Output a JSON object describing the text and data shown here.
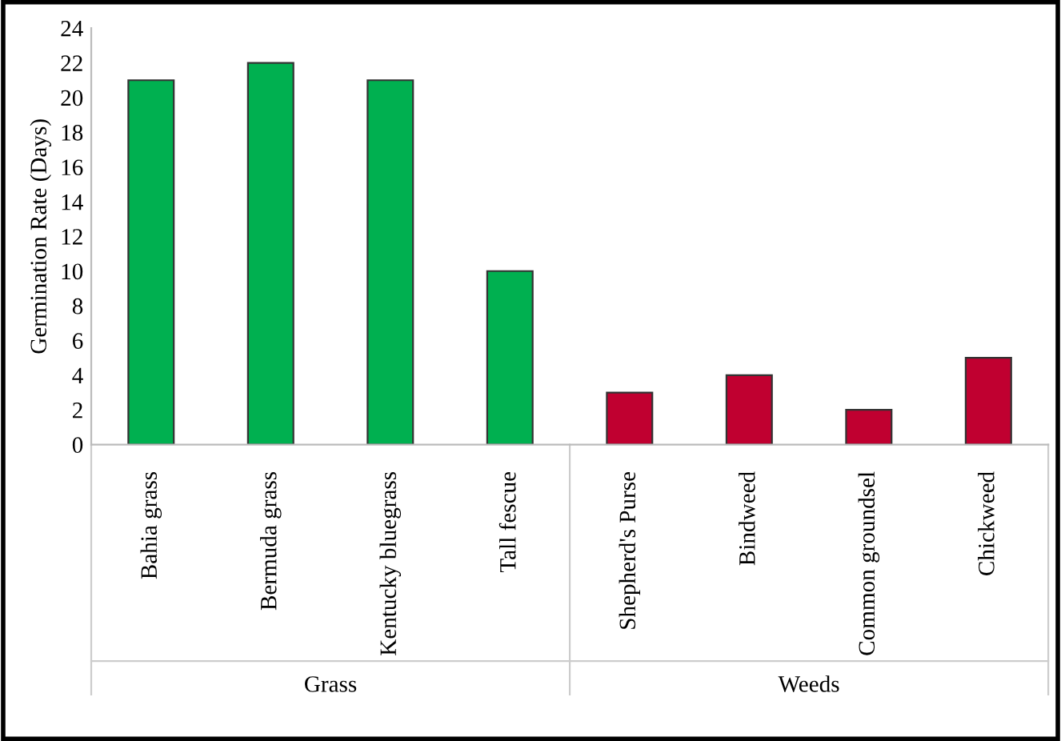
{
  "chart_data": {
    "type": "bar",
    "ylabel": "Germination Rate (Days)",
    "categories": [
      "Bahia grass",
      "Bermuda grass",
      "Kentucky bluegrass",
      "Tall fescue",
      "Shepherd's Purse",
      "Bindweed",
      "Common groundsel",
      "Chickweed"
    ],
    "values": [
      21,
      22,
      21,
      10,
      3,
      4,
      2,
      5
    ],
    "colors": [
      "#00b050",
      "#00b050",
      "#00b050",
      "#00b050",
      "#c00030",
      "#c00030",
      "#c00030",
      "#c00030"
    ],
    "ylim": [
      0,
      24
    ],
    "yticks": [
      0,
      2,
      4,
      6,
      8,
      10,
      12,
      14,
      16,
      18,
      20,
      22,
      24
    ],
    "annotations": [
      "Grass",
      "Weeds"
    ],
    "grid": false,
    "legend": false
  }
}
